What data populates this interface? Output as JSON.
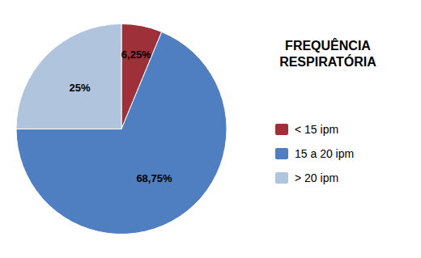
{
  "chart_data": {
    "type": "pie",
    "title": "FREQUÊNCIA\nRESPIRATÓRIA",
    "categories": [
      "< 15 ipm",
      "15 a 20 ipm",
      "> 20 ipm"
    ],
    "values": [
      6.25,
      68.75,
      25.0
    ],
    "value_labels": [
      "6,25%",
      "68,75%",
      "25%"
    ],
    "colors": [
      "#9e3039",
      "#4f7fc0",
      "#b0c4de"
    ],
    "data_labels": true,
    "legend": "right"
  }
}
